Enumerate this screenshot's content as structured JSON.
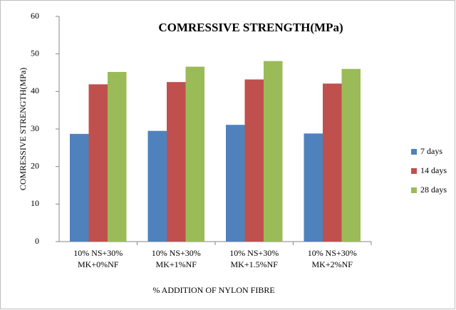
{
  "chart_data": {
    "type": "bar",
    "title": "COMRESSIVE STRENGTH(MPa)",
    "x_label": "% ADDITION OF NYLON FIBRE",
    "y_label": "COMRESSIVE STRENGTH(MPa)",
    "categories": [
      "10% NS+30% MK+0%NF",
      "10% NS+30% MK+1%NF",
      "10% NS+30% MK+1.5%NF",
      "10% NS+30% MK+2%NF"
    ],
    "series": [
      {
        "name": "7 days",
        "color": "#4f81bd",
        "values": [
          28.7,
          29.5,
          31.1,
          28.8
        ]
      },
      {
        "name": "14 days",
        "color": "#c0504d",
        "values": [
          41.9,
          42.5,
          43.2,
          42.1
        ]
      },
      {
        "name": "28 days",
        "color": "#9bbb59",
        "values": [
          45.2,
          46.6,
          48.1,
          46.0
        ]
      }
    ],
    "ylim": [
      0,
      60
    ],
    "yticks": [
      0,
      10,
      20,
      30,
      40,
      50,
      60
    ],
    "grid": false,
    "legend": "right"
  }
}
